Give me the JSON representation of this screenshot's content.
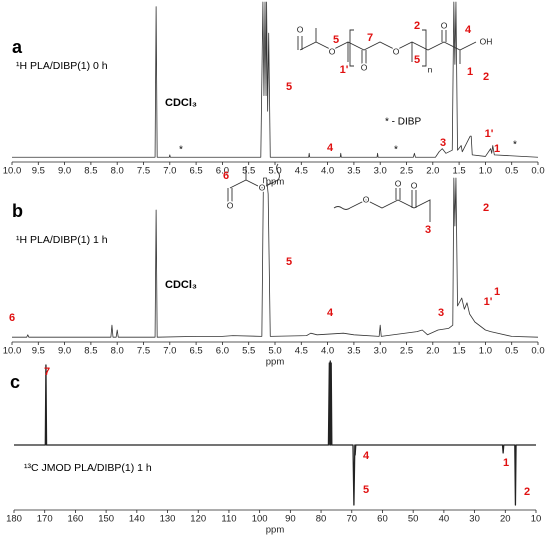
{
  "chart_data": [
    {
      "type": "line",
      "panel_label": "a",
      "title": "¹H  PLA/DIBP(1)  0 h",
      "x_label": "ppm",
      "color": "#333333",
      "xlim": [
        10,
        0
      ],
      "ylim": [
        0,
        100
      ],
      "xticks": [
        {
          "value": 10,
          "label": "10.0"
        },
        9.5,
        {
          "value": 9,
          "label": "9.0"
        },
        8.5,
        {
          "value": 8,
          "label": "8.0"
        },
        7.5,
        {
          "value": 7,
          "label": "7.0"
        },
        6.5,
        {
          "value": 6,
          "label": "6.0"
        },
        5.5,
        {
          "value": 5,
          "label": "5.0"
        },
        4.5,
        {
          "value": 4,
          "label": "4.0"
        },
        3.5,
        {
          "value": 3,
          "label": "3.0"
        },
        2.5,
        {
          "value": 2,
          "label": "2.0"
        },
        1.5,
        {
          "value": 1,
          "label": "1.0"
        },
        0.5,
        {
          "value": 0,
          "label": "0.0"
        }
      ],
      "x": [
        10,
        7.28,
        7.26,
        7.24,
        7.01,
        7.0,
        6.99,
        5.27,
        5.23,
        5.21,
        5.19,
        5.17,
        5.16,
        5.14,
        5.12,
        5.09,
        4.36,
        4.35,
        4.34,
        3.76,
        3.75,
        3.74,
        3.06,
        3.05,
        3.04,
        2.37,
        2.35,
        2.33,
        1.95,
        1.88,
        1.82,
        1.75,
        1.63,
        1.6,
        1.58,
        1.56,
        1.53,
        1.46,
        1.44,
        1.29,
        1.27,
        1.25,
        1.0,
        0.9,
        0.88,
        0.86,
        0.83,
        0
      ],
      "values": [
        0.5,
        0.5,
        97,
        0.5,
        0.5,
        2,
        0.5,
        0.5,
        100,
        40,
        100,
        40,
        100,
        30,
        80,
        0.5,
        0.5,
        3,
        0.5,
        0.5,
        3,
        0.5,
        0.5,
        3,
        0.5,
        0.5,
        3,
        0.5,
        0.5,
        4,
        6,
        3,
        5,
        100,
        60,
        100,
        5,
        8,
        4,
        14,
        14,
        2,
        1,
        6,
        3,
        8,
        2,
        0.5
      ],
      "annotations": [
        "CDCl₃",
        "* - DIBP",
        "*",
        "*",
        "*",
        "5",
        "2",
        "4",
        "3",
        "1'",
        "1",
        "5",
        "7",
        "2",
        "5",
        "4",
        "1'",
        "1",
        "O",
        "O",
        "O",
        "O",
        "O",
        "n",
        "OH"
      ]
    },
    {
      "type": "line",
      "panel_label": "b",
      "title": "¹H  PLA/DIBP(1)  1 h",
      "x_label": "ppm",
      "color": "#333333",
      "xlim": [
        10,
        0
      ],
      "ylim": [
        0,
        100
      ],
      "xticks": [
        {
          "value": 10,
          "label": "10.0"
        },
        9.5,
        {
          "value": 9,
          "label": "9.0"
        },
        8.5,
        {
          "value": 8,
          "label": "8.0"
        },
        7.5,
        {
          "value": 7,
          "label": "7.0"
        },
        6.5,
        {
          "value": 6,
          "label": "6.0"
        },
        5.5,
        {
          "value": 5,
          "label": "5.0"
        },
        4.5,
        {
          "value": 4,
          "label": "4.0"
        },
        3.5,
        {
          "value": 3,
          "label": "3.0"
        },
        2.5,
        {
          "value": 2,
          "label": "2.0"
        },
        1.5,
        {
          "value": 1,
          "label": "1.0"
        },
        0.5,
        {
          "value": 0,
          "label": "0.0"
        }
      ],
      "x": [
        10,
        9.72,
        9.7,
        9.68,
        8.12,
        8.1,
        8.08,
        8.02,
        8.0,
        7.98,
        7.28,
        7.26,
        7.24,
        6.5,
        6.0,
        5.8,
        5.25,
        5.22,
        5.19,
        5.16,
        5.13,
        5.09,
        4.4,
        4.32,
        4.2,
        3.7,
        3.5,
        3.02,
        3.0,
        2.98,
        2.3,
        2.2,
        2.1,
        1.9,
        1.7,
        1.62,
        1.6,
        1.58,
        1.56,
        1.53,
        1.45,
        1.4,
        1.35,
        1.3,
        1.2,
        1.0,
        0.9,
        0.5,
        0
      ],
      "values": [
        0.5,
        0.5,
        2,
        0.5,
        0.5,
        8,
        0.5,
        0.5,
        5,
        0.5,
        0.5,
        80,
        0.5,
        1,
        1,
        1.5,
        1,
        100,
        100,
        100,
        90,
        1,
        1.5,
        3,
        2,
        3,
        2,
        1,
        8,
        1,
        4,
        5,
        2,
        5,
        6,
        8,
        100,
        70,
        100,
        20,
        25,
        18,
        22,
        15,
        10,
        5,
        4,
        1,
        0.5
      ],
      "annotations": [
        "CDCl₃",
        "5",
        "2",
        "4",
        "3",
        "1",
        "1'",
        "6",
        "6",
        "O",
        "O",
        "O",
        "O",
        "O",
        "3"
      ]
    },
    {
      "type": "line",
      "panel_label": "c",
      "title": "¹³C JMOD   PLA/DIBP(1) 1 h",
      "x_label": "ppm",
      "color": "#222222",
      "xlim": [
        180,
        10
      ],
      "ylim": [
        -85,
        85
      ],
      "xticks": [
        180,
        170,
        160,
        150,
        140,
        130,
        120,
        110,
        100,
        90,
        80,
        70,
        60,
        50,
        40,
        30,
        20,
        10
      ],
      "x": [
        180,
        169.8,
        169.6,
        169.4,
        77.6,
        77.3,
        77.15,
        77.0,
        76.85,
        76.7,
        76.5,
        69.6,
        69.3,
        69.0,
        68.9,
        68.7,
        20.9,
        20.7,
        20.5,
        16.9,
        16.7,
        16.5,
        10
      ],
      "values": [
        0,
        0,
        80,
        0,
        0,
        82,
        0,
        84,
        0,
        82,
        0,
        0,
        -60,
        0,
        -10,
        0,
        0,
        -8,
        0,
        0,
        -60,
        0,
        0
      ],
      "annotations": [
        "7",
        "4",
        "5",
        "1",
        "2"
      ]
    }
  ]
}
